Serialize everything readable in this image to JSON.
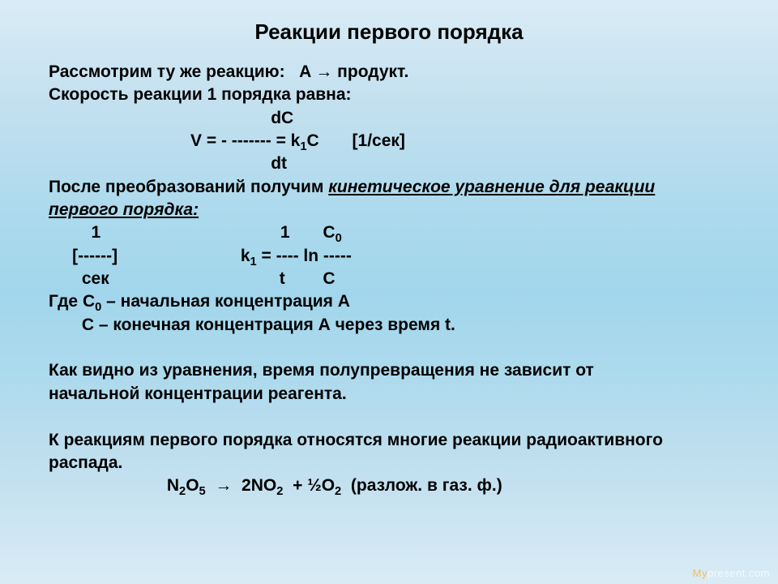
{
  "title": "Реакции первого порядка",
  "lines": {
    "l1a": "Рассмотрим ту же реакцию:   A ",
    "l1b": " продукт.",
    "l2": "Скорость реакции 1 порядка равна:",
    "l3": "                                               dС",
    "l4a": "                              V = - ------- = k",
    "l4b": "C       [1/сек]",
    "l5": "                                               dt",
    "l6a": "После преобразований получим ",
    "l6b": "кинетическое уравнение для реакции",
    "l6c": "первого порядка:",
    "l7a": "         1                                      1       С",
    "l8a": "     [------]                          k",
    "l8b": " = ---- ln -----",
    "l9": "       сек                                    t        С",
    "l10a": "Где С",
    "l10b": " – начальная концентрация А",
    "l11": "       С – конечная концентрация А через время t.",
    "l12": "",
    "l13": "Как видно из уравнения, время полупревращения не зависит от",
    "l14": "начальной концентрации реагента.",
    "l15": "",
    "l16": "К реакциям первого порядка относятся многие реакции радиоактивного",
    "l17": "распада.",
    "l18a": "                         N",
    "l18b": "O",
    "l18c": "  ",
    "l18d": "  2NO",
    "l18e": "  + ½O",
    "l18f": "  (разлож. в газ. ф.)"
  },
  "watermark_a": "present.",
  "watermark_b": "com"
}
